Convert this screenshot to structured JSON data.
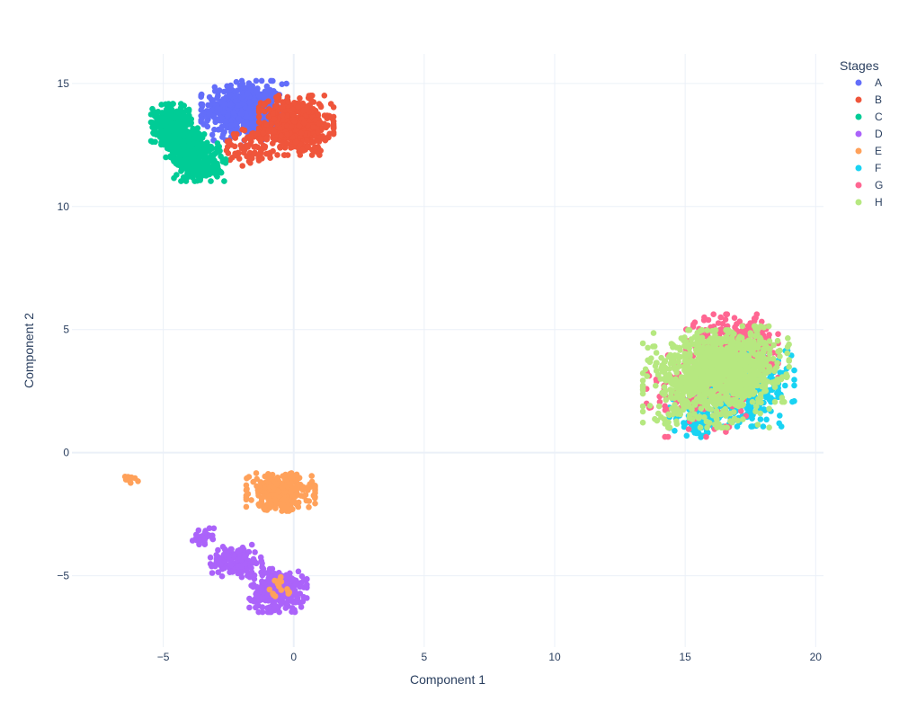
{
  "chart_data": {
    "type": "scatter",
    "title": "",
    "xlabel": "Component 1",
    "ylabel": "Component 2",
    "xlim": [
      -8.5,
      20.3
    ],
    "ylim": [
      -7.9,
      16.2
    ],
    "x_ticks": [
      -5,
      0,
      5,
      10,
      15,
      20
    ],
    "y_ticks": [
      -5,
      0,
      5,
      10,
      15
    ],
    "x_tick_labels": [
      "−5",
      "0",
      "5",
      "10",
      "15",
      "20"
    ],
    "y_tick_labels": [
      "−5",
      "0",
      "5",
      "10",
      "15"
    ],
    "grid": true,
    "legend": {
      "title": "Stages",
      "position": "top-right"
    },
    "series": [
      {
        "name": "A",
        "color": "#636efa",
        "clusters": [
          {
            "cx": -1.9,
            "cy": 13.9,
            "sx": 0.75,
            "sy": 0.55,
            "n": 520
          }
        ]
      },
      {
        "name": "B",
        "color": "#ef553b",
        "clusters": [
          {
            "cx": 0.1,
            "cy": 13.3,
            "sx": 0.65,
            "sy": 0.55,
            "n": 520
          },
          {
            "cx": -1.6,
            "cy": 12.4,
            "sx": 0.6,
            "sy": 0.35,
            "n": 80
          }
        ]
      },
      {
        "name": "C",
        "color": "#00cc96",
        "clusters": [
          {
            "cx": -4.7,
            "cy": 13.4,
            "sx": 0.35,
            "sy": 0.35,
            "n": 260
          },
          {
            "cx": -3.6,
            "cy": 11.8,
            "sx": 0.45,
            "sy": 0.35,
            "n": 260
          },
          {
            "cx": -4.2,
            "cy": 12.6,
            "sx": 0.4,
            "sy": 0.35,
            "n": 220
          }
        ]
      },
      {
        "name": "D",
        "color": "#ab63fa",
        "clusters": [
          {
            "cx": -0.6,
            "cy": -5.6,
            "sx": 0.5,
            "sy": 0.4,
            "n": 300
          },
          {
            "cx": -2.2,
            "cy": -4.4,
            "sx": 0.45,
            "sy": 0.3,
            "n": 150
          },
          {
            "cx": -3.5,
            "cy": -3.4,
            "sx": 0.2,
            "sy": 0.15,
            "n": 30
          }
        ]
      },
      {
        "name": "E",
        "color": "#ffa15a",
        "clusters": [
          {
            "cx": -0.5,
            "cy": -1.6,
            "sx": 0.6,
            "sy": 0.35,
            "n": 320
          },
          {
            "cx": -6.3,
            "cy": -1.1,
            "sx": 0.2,
            "sy": 0.1,
            "n": 15
          },
          {
            "cx": -0.6,
            "cy": -5.6,
            "sx": 0.35,
            "sy": 0.25,
            "n": 15
          }
        ]
      },
      {
        "name": "F",
        "color": "#19d3f3",
        "clusters": [
          {
            "cx": 17.2,
            "cy": 2.6,
            "sx": 0.9,
            "sy": 0.7,
            "n": 380
          },
          {
            "cx": 15.5,
            "cy": 1.4,
            "sx": 0.5,
            "sy": 0.35,
            "n": 80
          }
        ]
      },
      {
        "name": "G",
        "color": "#ff6692",
        "clusters": [
          {
            "cx": 16.8,
            "cy": 4.3,
            "sx": 0.8,
            "sy": 0.6,
            "n": 360
          },
          {
            "cx": 15.5,
            "cy": 2.4,
            "sx": 0.9,
            "sy": 0.8,
            "n": 140
          }
        ]
      },
      {
        "name": "H",
        "color": "#b6e880",
        "clusters": [
          {
            "cx": 15.8,
            "cy": 3.0,
            "sx": 1.1,
            "sy": 0.9,
            "n": 650
          },
          {
            "cx": 17.0,
            "cy": 3.6,
            "sx": 0.9,
            "sy": 0.7,
            "n": 420
          }
        ]
      }
    ]
  }
}
